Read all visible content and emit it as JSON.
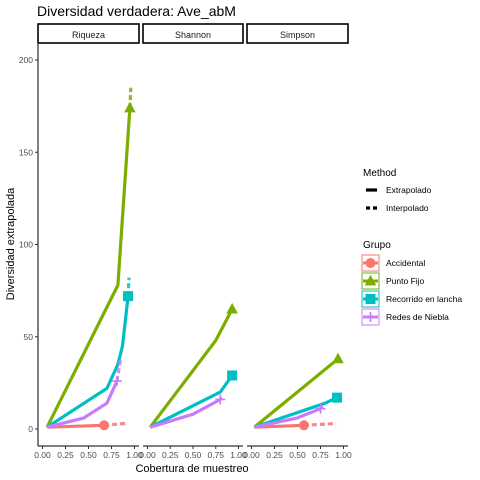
{
  "chart_data": {
    "type": "line",
    "title": "Diversidad verdadera: Ave_abM",
    "xlabel": "Cobertura de muestreo",
    "ylabel": "Diversidad extrapolada",
    "xlim": [
      0,
      1
    ],
    "ylim": [
      0,
      200
    ],
    "x_ticks": [
      "0.00",
      "0.25",
      "0.50",
      "0.75",
      "1.00"
    ],
    "y_ticks": [
      "0",
      "50",
      "100",
      "150",
      "200"
    ],
    "grid": false,
    "legend_position": "right",
    "facets": [
      "Riqueza",
      "Shannon",
      "Simpson"
    ],
    "method_legend": {
      "title": "Method",
      "entries": [
        {
          "label": "Extrapolado",
          "dash": "solid"
        },
        {
          "label": "Interpolado",
          "dash": "dashed"
        }
      ]
    },
    "group_legend": {
      "title": "Grupo",
      "entries": [
        {
          "label": "Accidental",
          "color": "#F8766D",
          "shape": "circle"
        },
        {
          "label": "Punto Fijo",
          "color": "#7CAE00",
          "shape": "triangle"
        },
        {
          "label": "Recorrido en lancha",
          "color": "#00BFC4",
          "shape": "square"
        },
        {
          "label": "Redes de Niebla",
          "color": "#C77CFF",
          "shape": "plus"
        }
      ]
    },
    "panels": [
      {
        "facet": "Riqueza",
        "series": [
          {
            "group": "Accidental",
            "observed": [
              0.67,
              2
            ],
            "interpolated": [
              [
                0.05,
                1
              ],
              [
                0.67,
                2
              ]
            ],
            "extrapolated": [
              [
                0.67,
                2
              ],
              [
                0.9,
                3
              ]
            ]
          },
          {
            "group": "Punto Fijo",
            "observed": [
              0.95,
              174
            ],
            "interpolated": [
              [
                0.05,
                1
              ],
              [
                0.82,
                78
              ],
              [
                0.95,
                174
              ]
            ],
            "extrapolated": [
              [
                0.95,
                174
              ],
              [
                0.96,
                185
              ]
            ]
          },
          {
            "group": "Recorrido en lancha",
            "observed": [
              0.93,
              72
            ],
            "interpolated": [
              [
                0.05,
                1
              ],
              [
                0.7,
                22
              ],
              [
                0.82,
                35
              ],
              [
                0.87,
                45
              ],
              [
                0.93,
                72
              ]
            ],
            "extrapolated": [
              [
                0.93,
                72
              ],
              [
                0.94,
                82
              ]
            ]
          },
          {
            "group": "Redes de Niebla",
            "observed": [
              0.81,
              26
            ],
            "interpolated": [
              [
                0.05,
                1
              ],
              [
                0.45,
                6
              ],
              [
                0.7,
                14
              ],
              [
                0.81,
                26
              ]
            ],
            "extrapolated": [
              [
                0.81,
                26
              ],
              [
                0.85,
                38
              ]
            ]
          }
        ]
      },
      {
        "facet": "Shannon",
        "series": [
          {
            "group": "Punto Fijo",
            "observed": [
              0.93,
              65
            ],
            "interpolated": [
              [
                0.03,
                1
              ],
              [
                0.75,
                48
              ],
              [
                0.93,
                65
              ]
            ],
            "extrapolated": [
              [
                0.93,
                65
              ],
              [
                0.94,
                66
              ]
            ]
          },
          {
            "group": "Recorrido en lancha",
            "observed": [
              0.93,
              29
            ],
            "interpolated": [
              [
                0.03,
                1
              ],
              [
                0.8,
                20
              ],
              [
                0.93,
                29
              ]
            ],
            "extrapolated": [
              [
                0.93,
                29
              ],
              [
                0.94,
                29
              ]
            ]
          },
          {
            "group": "Redes de Niebla",
            "observed": [
              0.8,
              16
            ],
            "interpolated": [
              [
                0.03,
                1
              ],
              [
                0.5,
                8
              ],
              [
                0.8,
                16
              ]
            ],
            "extrapolated": [
              [
                0.8,
                16
              ],
              [
                0.82,
                17
              ]
            ]
          }
        ]
      },
      {
        "facet": "Simpson",
        "series": [
          {
            "group": "Accidental",
            "observed": [
              0.57,
              2
            ],
            "interpolated": [
              [
                0.03,
                1
              ],
              [
                0.57,
                2
              ]
            ],
            "extrapolated": [
              [
                0.57,
                2
              ],
              [
                0.92,
                3
              ]
            ]
          },
          {
            "group": "Punto Fijo",
            "observed": [
              0.94,
              38
            ],
            "interpolated": [
              [
                0.03,
                1
              ],
              [
                0.94,
                38
              ]
            ],
            "extrapolated": [
              [
                0.94,
                38
              ],
              [
                0.95,
                38
              ]
            ]
          },
          {
            "group": "Recorrido en lancha",
            "observed": [
              0.93,
              17
            ],
            "interpolated": [
              [
                0.03,
                1
              ],
              [
                0.8,
                14
              ],
              [
                0.93,
                17
              ]
            ],
            "extrapolated": [
              [
                0.93,
                17
              ],
              [
                0.94,
                17
              ]
            ]
          },
          {
            "group": "Redes de Niebla",
            "observed": [
              0.75,
              11
            ],
            "interpolated": [
              [
                0.03,
                1
              ],
              [
                0.5,
                6
              ],
              [
                0.75,
                11
              ]
            ],
            "extrapolated": [
              [
                0.75,
                11
              ],
              [
                0.78,
                12
              ]
            ]
          }
        ]
      }
    ]
  }
}
